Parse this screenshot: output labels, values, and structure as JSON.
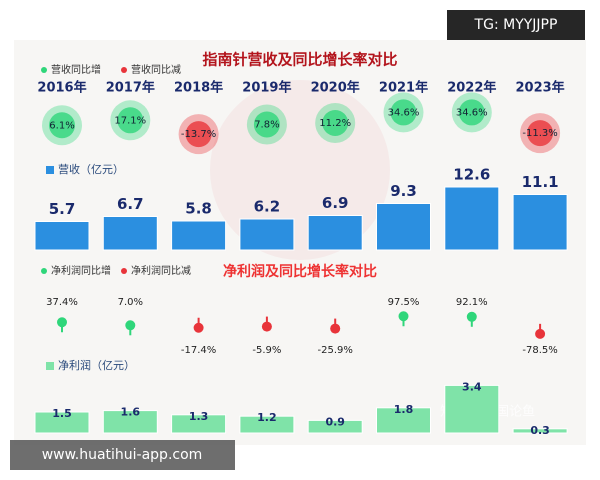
{
  "chart_data": [
    {
      "type": "bar",
      "title": "指南针营收及同比增长率对比",
      "categories": [
        "2016年",
        "2017年",
        "2018年",
        "2019年",
        "2020年",
        "2021年",
        "2022年",
        "2023年"
      ],
      "growth": {
        "legend": [
          "营收同比增",
          "营收同比减"
        ],
        "colors": [
          "#2fd67a",
          "#e8343a"
        ],
        "values": [
          6.1,
          17.1,
          -13.7,
          7.8,
          11.2,
          34.6,
          34.6,
          -11.3
        ],
        "value_labels": [
          "6.1%",
          "17.1%",
          "-13.7%",
          "7.8%",
          "11.2%",
          "34.6%",
          "34.6%",
          "-11.3%"
        ]
      },
      "bar_label": "营收（亿元）",
      "color": "#2b8fe0",
      "values": [
        5.7,
        6.7,
        5.8,
        6.2,
        6.9,
        9.3,
        12.6,
        11.1
      ]
    },
    {
      "type": "bar",
      "title": "净利润及同比增长率对比",
      "growth": {
        "legend": [
          "净利润同比增",
          "净利润同比减"
        ],
        "colors": [
          "#2fd67a",
          "#e8343a"
        ],
        "values": [
          37.4,
          7.0,
          -17.4,
          -5.9,
          -25.9,
          97.5,
          92.1,
          -78.5
        ],
        "value_labels": [
          "37.4%",
          "7.0%",
          "-17.4%",
          "-5.9%",
          "-25.9%",
          "97.5%",
          "92.1%",
          "-78.5%"
        ]
      },
      "bar_label": "净利润（亿元）",
      "color": "#7fe3a8",
      "values": [
        1.5,
        1.6,
        1.3,
        1.2,
        0.9,
        1.8,
        3.4,
        0.3
      ]
    }
  ],
  "watermarks": {
    "top": "TG: MYYJJPP",
    "bottom": "www.huatihui-app.com",
    "source": "知乎 @吾国论鱼"
  }
}
